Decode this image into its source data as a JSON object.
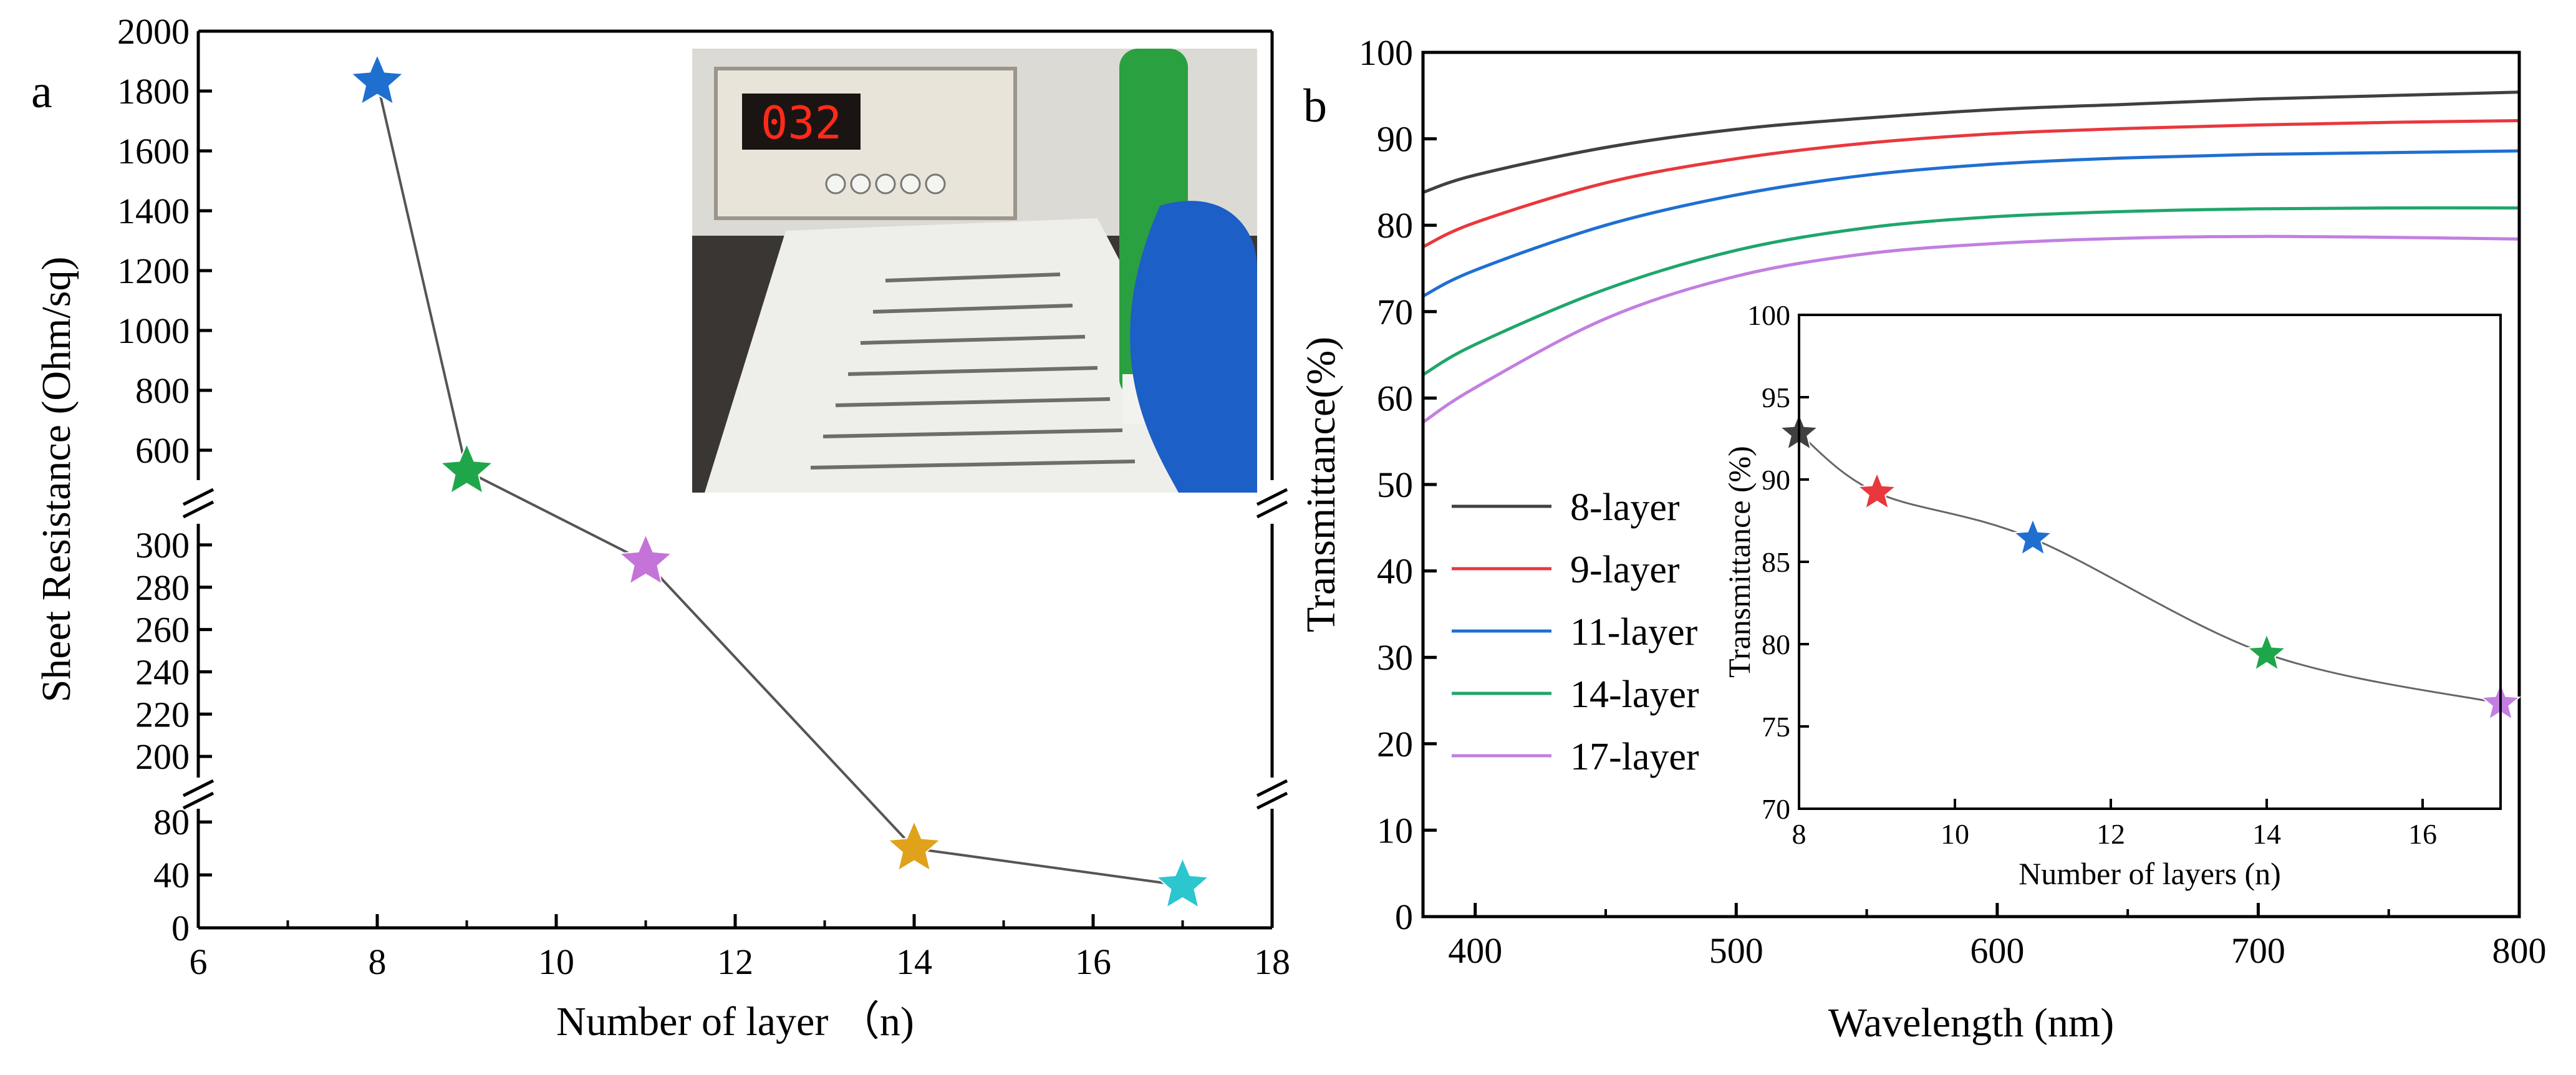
{
  "panels": {
    "a": "a",
    "b": "b"
  },
  "chart_data": [
    {
      "type": "scatter",
      "panel": "a",
      "xlabel": "Number of layer （n)",
      "ylabel": "Sheet Resistance (Ohm/sq)",
      "xlim": [
        6,
        18
      ],
      "x_ticks": [
        "6",
        "8",
        "10",
        "12",
        "14",
        "16",
        "18"
      ],
      "axis_breaks": "two breaks on the y axis (between 80 and 200, and between 300 and 500)",
      "y_segments": [
        {
          "range": [
            0,
            90
          ],
          "ticks": [
            "0",
            "40",
            "80"
          ]
        },
        {
          "range": [
            190,
            310
          ],
          "ticks": [
            "200",
            "220",
            "240",
            "260",
            "280",
            "300"
          ]
        },
        {
          "range": [
            500,
            2000
          ],
          "ticks": [
            "600",
            "800",
            "1000",
            "1200",
            "1400",
            "1600",
            "1800",
            "2000"
          ]
        }
      ],
      "marker": "star",
      "connected": true,
      "points": [
        {
          "x": 8,
          "y": 1830,
          "color": "#1f6fd1"
        },
        {
          "x": 9,
          "y": 530,
          "color": "#1fa64a"
        },
        {
          "x": 11,
          "y": 292,
          "color": "#c473d9"
        },
        {
          "x": 14,
          "y": 60,
          "color": "#e0a21a"
        },
        {
          "x": 17,
          "y": 32,
          "color": "#2cc6cf"
        }
      ],
      "inset": "photo of a four-point probe sheet resistance meter; display reads 032",
      "meter_display": "032"
    },
    {
      "type": "line",
      "panel": "b",
      "xlabel": "Wavelength (nm)",
      "ylabel": "Transmittance(%)",
      "xlim": [
        380,
        800
      ],
      "ylim": [
        0,
        100
      ],
      "x_ticks": [
        "400",
        "500",
        "600",
        "700",
        "800"
      ],
      "y_ticks": [
        "0",
        "10",
        "20",
        "30",
        "40",
        "50",
        "60",
        "70",
        "80",
        "90",
        "100"
      ],
      "legend_position": "left-middle",
      "x": [
        380,
        400,
        450,
        500,
        550,
        600,
        650,
        700,
        750,
        800
      ],
      "series": [
        {
          "name": "8-layer",
          "color": "#404040",
          "values": [
            83.8,
            85.8,
            89.0,
            91.1,
            92.4,
            93.4,
            94.0,
            94.6,
            95.0,
            95.4
          ]
        },
        {
          "name": "9-layer",
          "color": "#e8383d",
          "values": [
            77.5,
            80.3,
            84.9,
            87.7,
            89.5,
            90.6,
            91.2,
            91.6,
            91.9,
            92.1
          ]
        },
        {
          "name": "11-layer",
          "color": "#1f6fd1",
          "values": [
            71.8,
            74.8,
            80.0,
            83.5,
            85.8,
            87.1,
            87.8,
            88.2,
            88.4,
            88.6
          ]
        },
        {
          "name": "14-layer",
          "color": "#1fa66a",
          "values": [
            62.7,
            66.2,
            72.6,
            77.1,
            79.7,
            81.0,
            81.6,
            81.9,
            82.0,
            82.0
          ]
        },
        {
          "name": "17-layer",
          "color": "#c27fe0",
          "values": [
            57.2,
            61.2,
            69.2,
            74.1,
            76.7,
            77.9,
            78.5,
            78.7,
            78.6,
            78.4
          ]
        }
      ],
      "inset": {
        "type": "line",
        "xlabel": "Number of  layers (n)",
        "ylabel": "Transmittance (%)",
        "xlim": [
          8,
          17
        ],
        "ylim": [
          70,
          100
        ],
        "x_ticks": [
          "8",
          "10",
          "12",
          "14",
          "16"
        ],
        "y_ticks": [
          "70",
          "75",
          "80",
          "85",
          "90",
          "95",
          "100"
        ],
        "marker": "star",
        "points": [
          {
            "x": 8,
            "y": 92.8,
            "color": "#404040"
          },
          {
            "x": 9,
            "y": 89.2,
            "color": "#e8383d"
          },
          {
            "x": 11,
            "y": 86.4,
            "color": "#1f6fd1"
          },
          {
            "x": 14,
            "y": 79.4,
            "color": "#1fa64a"
          },
          {
            "x": 17,
            "y": 76.4,
            "color": "#c27fe0"
          }
        ]
      }
    }
  ]
}
